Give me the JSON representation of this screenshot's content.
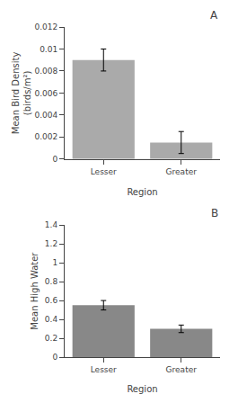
{
  "chart_data": [
    {
      "type": "bar",
      "title": "A",
      "categories": [
        "Lesser",
        "Greater"
      ],
      "values": [
        0.009,
        0.0015
      ],
      "errors": [
        0.001,
        0.001
      ],
      "color": "#aaaaaa",
      "xlabel": "Region",
      "ylabel": "Mean Bird Density\n(birds/m²)",
      "ylim": [
        0,
        0.012
      ],
      "yticks": [
        0,
        0.002,
        0.004,
        0.006,
        0.008,
        0.01,
        0.012
      ],
      "grid": false
    },
    {
      "type": "bar",
      "title": "B",
      "categories": [
        "Lesser",
        "Greater"
      ],
      "values": [
        0.55,
        0.3
      ],
      "errors": [
        0.05,
        0.04
      ],
      "color": "#888888",
      "xlabel": "Region",
      "ylabel": "Mean High Water",
      "ylim": [
        0,
        1.4
      ],
      "yticks": [
        0,
        0.2,
        0.4,
        0.6,
        0.8,
        1,
        1.2,
        1.4
      ],
      "grid": false
    }
  ]
}
